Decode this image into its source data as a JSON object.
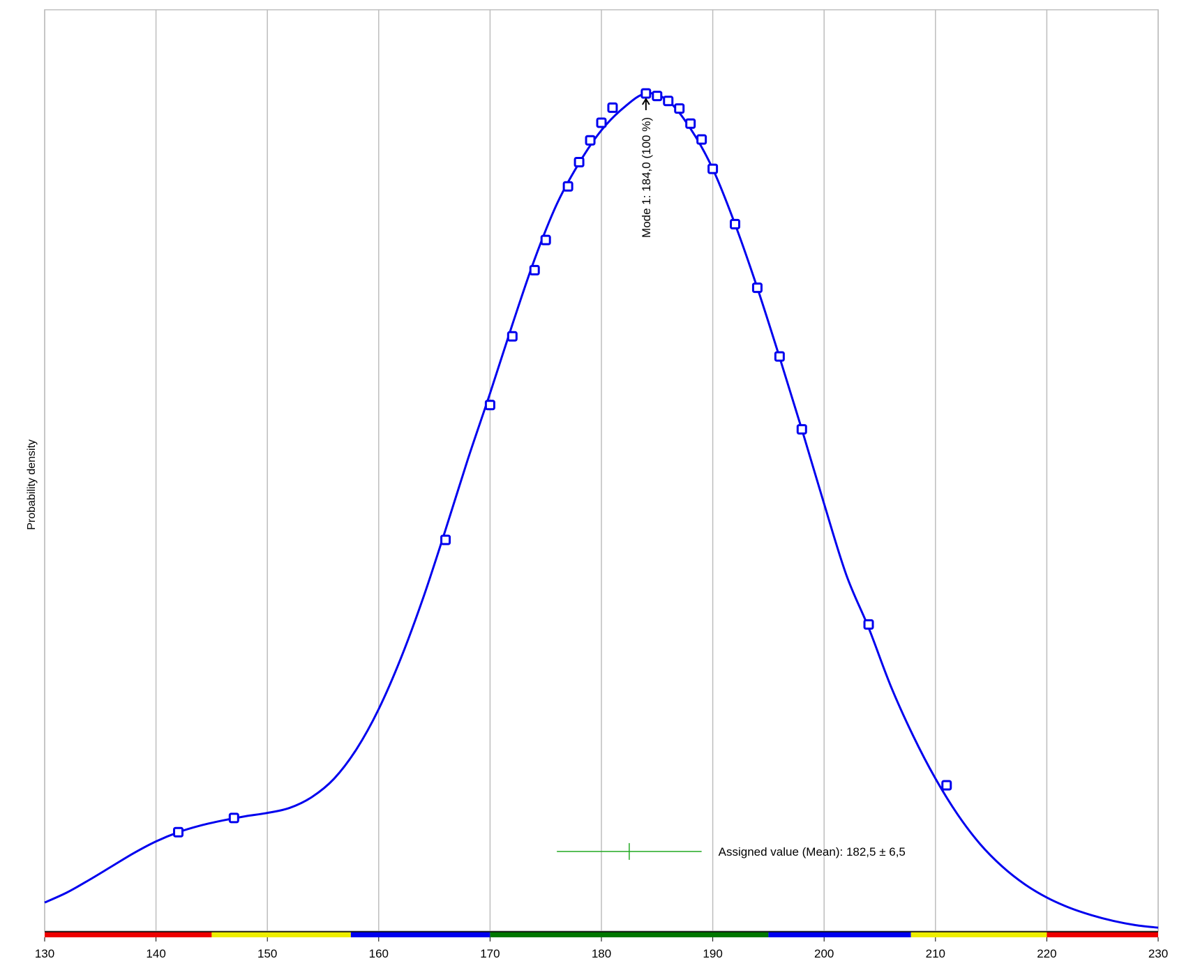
{
  "chart_data": {
    "type": "line",
    "title": "",
    "xlabel": "",
    "ylabel": "Probability density",
    "xlim": [
      130,
      230
    ],
    "ylim": [
      0,
      1.0
    ],
    "x_ticks": [
      "130",
      "140",
      "150",
      "160",
      "170",
      "180",
      "190",
      "200",
      "210",
      "220",
      "230"
    ],
    "grid": "vertical",
    "series": [
      {
        "type": "curve",
        "color": "#0000ee",
        "points": [
          [
            130,
            0.034
          ],
          [
            132,
            0.046
          ],
          [
            134,
            0.061
          ],
          [
            136,
            0.077
          ],
          [
            138,
            0.093
          ],
          [
            140,
            0.107
          ],
          [
            142,
            0.118
          ],
          [
            144,
            0.126
          ],
          [
            146,
            0.132
          ],
          [
            148,
            0.137
          ],
          [
            150,
            0.141
          ],
          [
            152,
            0.147
          ],
          [
            154,
            0.16
          ],
          [
            156,
            0.182
          ],
          [
            158,
            0.217
          ],
          [
            160,
            0.265
          ],
          [
            162,
            0.326
          ],
          [
            164,
            0.398
          ],
          [
            166,
            0.479
          ],
          [
            168,
            0.563
          ],
          [
            170,
            0.642
          ],
          [
            172,
            0.724
          ],
          [
            174,
            0.802
          ],
          [
            176,
            0.868
          ],
          [
            178,
            0.917
          ],
          [
            180,
            0.956
          ],
          [
            182,
            0.983
          ],
          [
            184,
            1.0
          ],
          [
            186,
            0.991
          ],
          [
            188,
            0.958
          ],
          [
            190,
            0.91
          ],
          [
            192,
            0.844
          ],
          [
            194,
            0.768
          ],
          [
            196,
            0.685
          ],
          [
            198,
            0.599
          ],
          [
            200,
            0.51
          ],
          [
            202,
            0.425
          ],
          [
            204,
            0.362
          ],
          [
            206,
            0.292
          ],
          [
            208,
            0.233
          ],
          [
            210,
            0.182
          ],
          [
            212,
            0.139
          ],
          [
            214,
            0.104
          ],
          [
            216,
            0.077
          ],
          [
            218,
            0.056
          ],
          [
            220,
            0.04
          ],
          [
            222,
            0.028
          ],
          [
            224,
            0.019
          ],
          [
            226,
            0.012
          ],
          [
            228,
            0.007
          ],
          [
            230,
            0.004
          ]
        ]
      },
      {
        "type": "markers",
        "color": "#0000ee",
        "points": [
          [
            142,
            0.118
          ],
          [
            147,
            0.135
          ],
          [
            166,
            0.467
          ],
          [
            170,
            0.628
          ],
          [
            172,
            0.71
          ],
          [
            174,
            0.789
          ],
          [
            175,
            0.825
          ],
          [
            177,
            0.889
          ],
          [
            178,
            0.918
          ],
          [
            179,
            0.944
          ],
          [
            180,
            0.965
          ],
          [
            181,
            0.983
          ],
          [
            184,
            1.0
          ],
          [
            185,
            0.997
          ],
          [
            186,
            0.991
          ],
          [
            187,
            0.982
          ],
          [
            188,
            0.964
          ],
          [
            189,
            0.945
          ],
          [
            190,
            0.91
          ],
          [
            192,
            0.844
          ],
          [
            194,
            0.768
          ],
          [
            196,
            0.686
          ],
          [
            198,
            0.599
          ],
          [
            204,
            0.366
          ],
          [
            211,
            0.174
          ]
        ]
      }
    ],
    "mode_annotation": {
      "x": 184.0,
      "label": "Mode 1: 184,0  (100 %)"
    },
    "assigned_value": {
      "mean": 182.5,
      "uncertainty": 6.5,
      "label": "Assigned value (Mean): 182,5 ± 6,5",
      "color": "#22aa22",
      "level": 0.095
    },
    "color_bar": [
      {
        "from": 130,
        "to": 145,
        "color": "#ee0000"
      },
      {
        "from": 145,
        "to": 157.5,
        "color": "#eeee00"
      },
      {
        "from": 157.5,
        "to": 170,
        "color": "#0000ee"
      },
      {
        "from": 170,
        "to": 195,
        "color": "#007700"
      },
      {
        "from": 195,
        "to": 207.8,
        "color": "#0000ee"
      },
      {
        "from": 207.8,
        "to": 220,
        "color": "#eeee00"
      },
      {
        "from": 220,
        "to": 230,
        "color": "#ee0000"
      }
    ]
  }
}
